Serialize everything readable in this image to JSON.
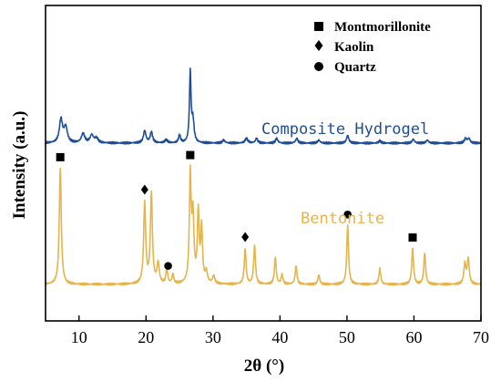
{
  "chart_data": {
    "type": "line",
    "title": "",
    "xlabel": "2θ (°)",
    "ylabel": "Intensity (a.u.)",
    "xlim": [
      5,
      70
    ],
    "xticks": [
      10,
      20,
      30,
      40,
      50,
      60,
      70
    ],
    "y_tick_labels_shown": false,
    "grid": false,
    "legend_position": "top-right",
    "legend": [
      {
        "marker": "square",
        "label": "Montmorillonite"
      },
      {
        "marker": "diamond",
        "label": "Kaolin"
      },
      {
        "marker": "circle",
        "label": "Quartz"
      }
    ],
    "series": [
      {
        "name": "Composite Hydrogel",
        "color": "#1f4e96",
        "baseline": 1.0,
        "peaks": [
          {
            "x": 7.3,
            "h": 0.15,
            "w": 0.28
          },
          {
            "x": 8.0,
            "h": 0.1,
            "w": 0.3
          },
          {
            "x": 10.6,
            "h": 0.06,
            "w": 0.3
          },
          {
            "x": 11.9,
            "h": 0.05,
            "w": 0.3
          },
          {
            "x": 12.6,
            "h": 0.03,
            "w": 0.3
          },
          {
            "x": 19.8,
            "h": 0.08,
            "w": 0.22
          },
          {
            "x": 20.8,
            "h": 0.07,
            "w": 0.22
          },
          {
            "x": 23.0,
            "h": 0.02,
            "w": 0.25
          },
          {
            "x": 25.0,
            "h": 0.05,
            "w": 0.18
          },
          {
            "x": 26.6,
            "h": 0.45,
            "w": 0.14
          },
          {
            "x": 27.0,
            "h": 0.14,
            "w": 0.2
          },
          {
            "x": 31.6,
            "h": 0.02,
            "w": 0.2
          },
          {
            "x": 35.0,
            "h": 0.03,
            "w": 0.25
          },
          {
            "x": 36.5,
            "h": 0.03,
            "w": 0.2
          },
          {
            "x": 39.5,
            "h": 0.03,
            "w": 0.2
          },
          {
            "x": 42.5,
            "h": 0.03,
            "w": 0.2
          },
          {
            "x": 45.8,
            "h": 0.02,
            "w": 0.2
          },
          {
            "x": 50.1,
            "h": 0.05,
            "w": 0.2
          },
          {
            "x": 54.9,
            "h": 0.015,
            "w": 0.2
          },
          {
            "x": 59.9,
            "h": 0.025,
            "w": 0.2
          },
          {
            "x": 62.0,
            "h": 0.02,
            "w": 0.2
          },
          {
            "x": 67.7,
            "h": 0.03,
            "w": 0.2
          },
          {
            "x": 68.2,
            "h": 0.03,
            "w": 0.2
          }
        ]
      },
      {
        "name": "Bentonite",
        "color": "#e6b44c",
        "baseline": 0.0,
        "peaks": [
          {
            "x": 7.2,
            "h": 0.75,
            "w": 0.18
          },
          {
            "x": 19.8,
            "h": 0.52,
            "w": 0.18
          },
          {
            "x": 20.8,
            "h": 0.58,
            "w": 0.18
          },
          {
            "x": 21.8,
            "h": 0.13,
            "w": 0.2
          },
          {
            "x": 23.1,
            "h": 0.1,
            "w": 0.15
          },
          {
            "x": 24.0,
            "h": 0.06,
            "w": 0.15
          },
          {
            "x": 26.6,
            "h": 0.68,
            "w": 0.16
          },
          {
            "x": 27.0,
            "h": 0.42,
            "w": 0.18
          },
          {
            "x": 27.8,
            "h": 0.45,
            "w": 0.16
          },
          {
            "x": 28.3,
            "h": 0.35,
            "w": 0.16
          },
          {
            "x": 29.0,
            "h": 0.07,
            "w": 0.2
          },
          {
            "x": 30.1,
            "h": 0.05,
            "w": 0.2
          },
          {
            "x": 34.8,
            "h": 0.23,
            "w": 0.16
          },
          {
            "x": 36.2,
            "h": 0.25,
            "w": 0.16
          },
          {
            "x": 39.3,
            "h": 0.17,
            "w": 0.16
          },
          {
            "x": 40.3,
            "h": 0.06,
            "w": 0.16
          },
          {
            "x": 42.4,
            "h": 0.12,
            "w": 0.16
          },
          {
            "x": 45.8,
            "h": 0.06,
            "w": 0.16
          },
          {
            "x": 50.1,
            "h": 0.38,
            "w": 0.16
          },
          {
            "x": 54.9,
            "h": 0.1,
            "w": 0.16
          },
          {
            "x": 59.8,
            "h": 0.23,
            "w": 0.16
          },
          {
            "x": 61.6,
            "h": 0.2,
            "w": 0.16
          },
          {
            "x": 67.6,
            "h": 0.13,
            "w": 0.18
          },
          {
            "x": 68.1,
            "h": 0.16,
            "w": 0.18
          }
        ]
      }
    ],
    "annotations": [
      {
        "marker": "square",
        "x": 7.2,
        "series": "Bentonite"
      },
      {
        "marker": "diamond",
        "x": 19.8,
        "series": "Bentonite"
      },
      {
        "marker": "circle",
        "x": 23.3,
        "series": "Bentonite"
      },
      {
        "marker": "square",
        "x": 26.6,
        "series": "Bentonite"
      },
      {
        "marker": "diamond",
        "x": 34.8,
        "series": "Bentonite"
      },
      {
        "marker": "circle",
        "x": 50.1,
        "series": "Bentonite"
      },
      {
        "marker": "square",
        "x": 59.8,
        "series": "Bentonite"
      }
    ]
  }
}
